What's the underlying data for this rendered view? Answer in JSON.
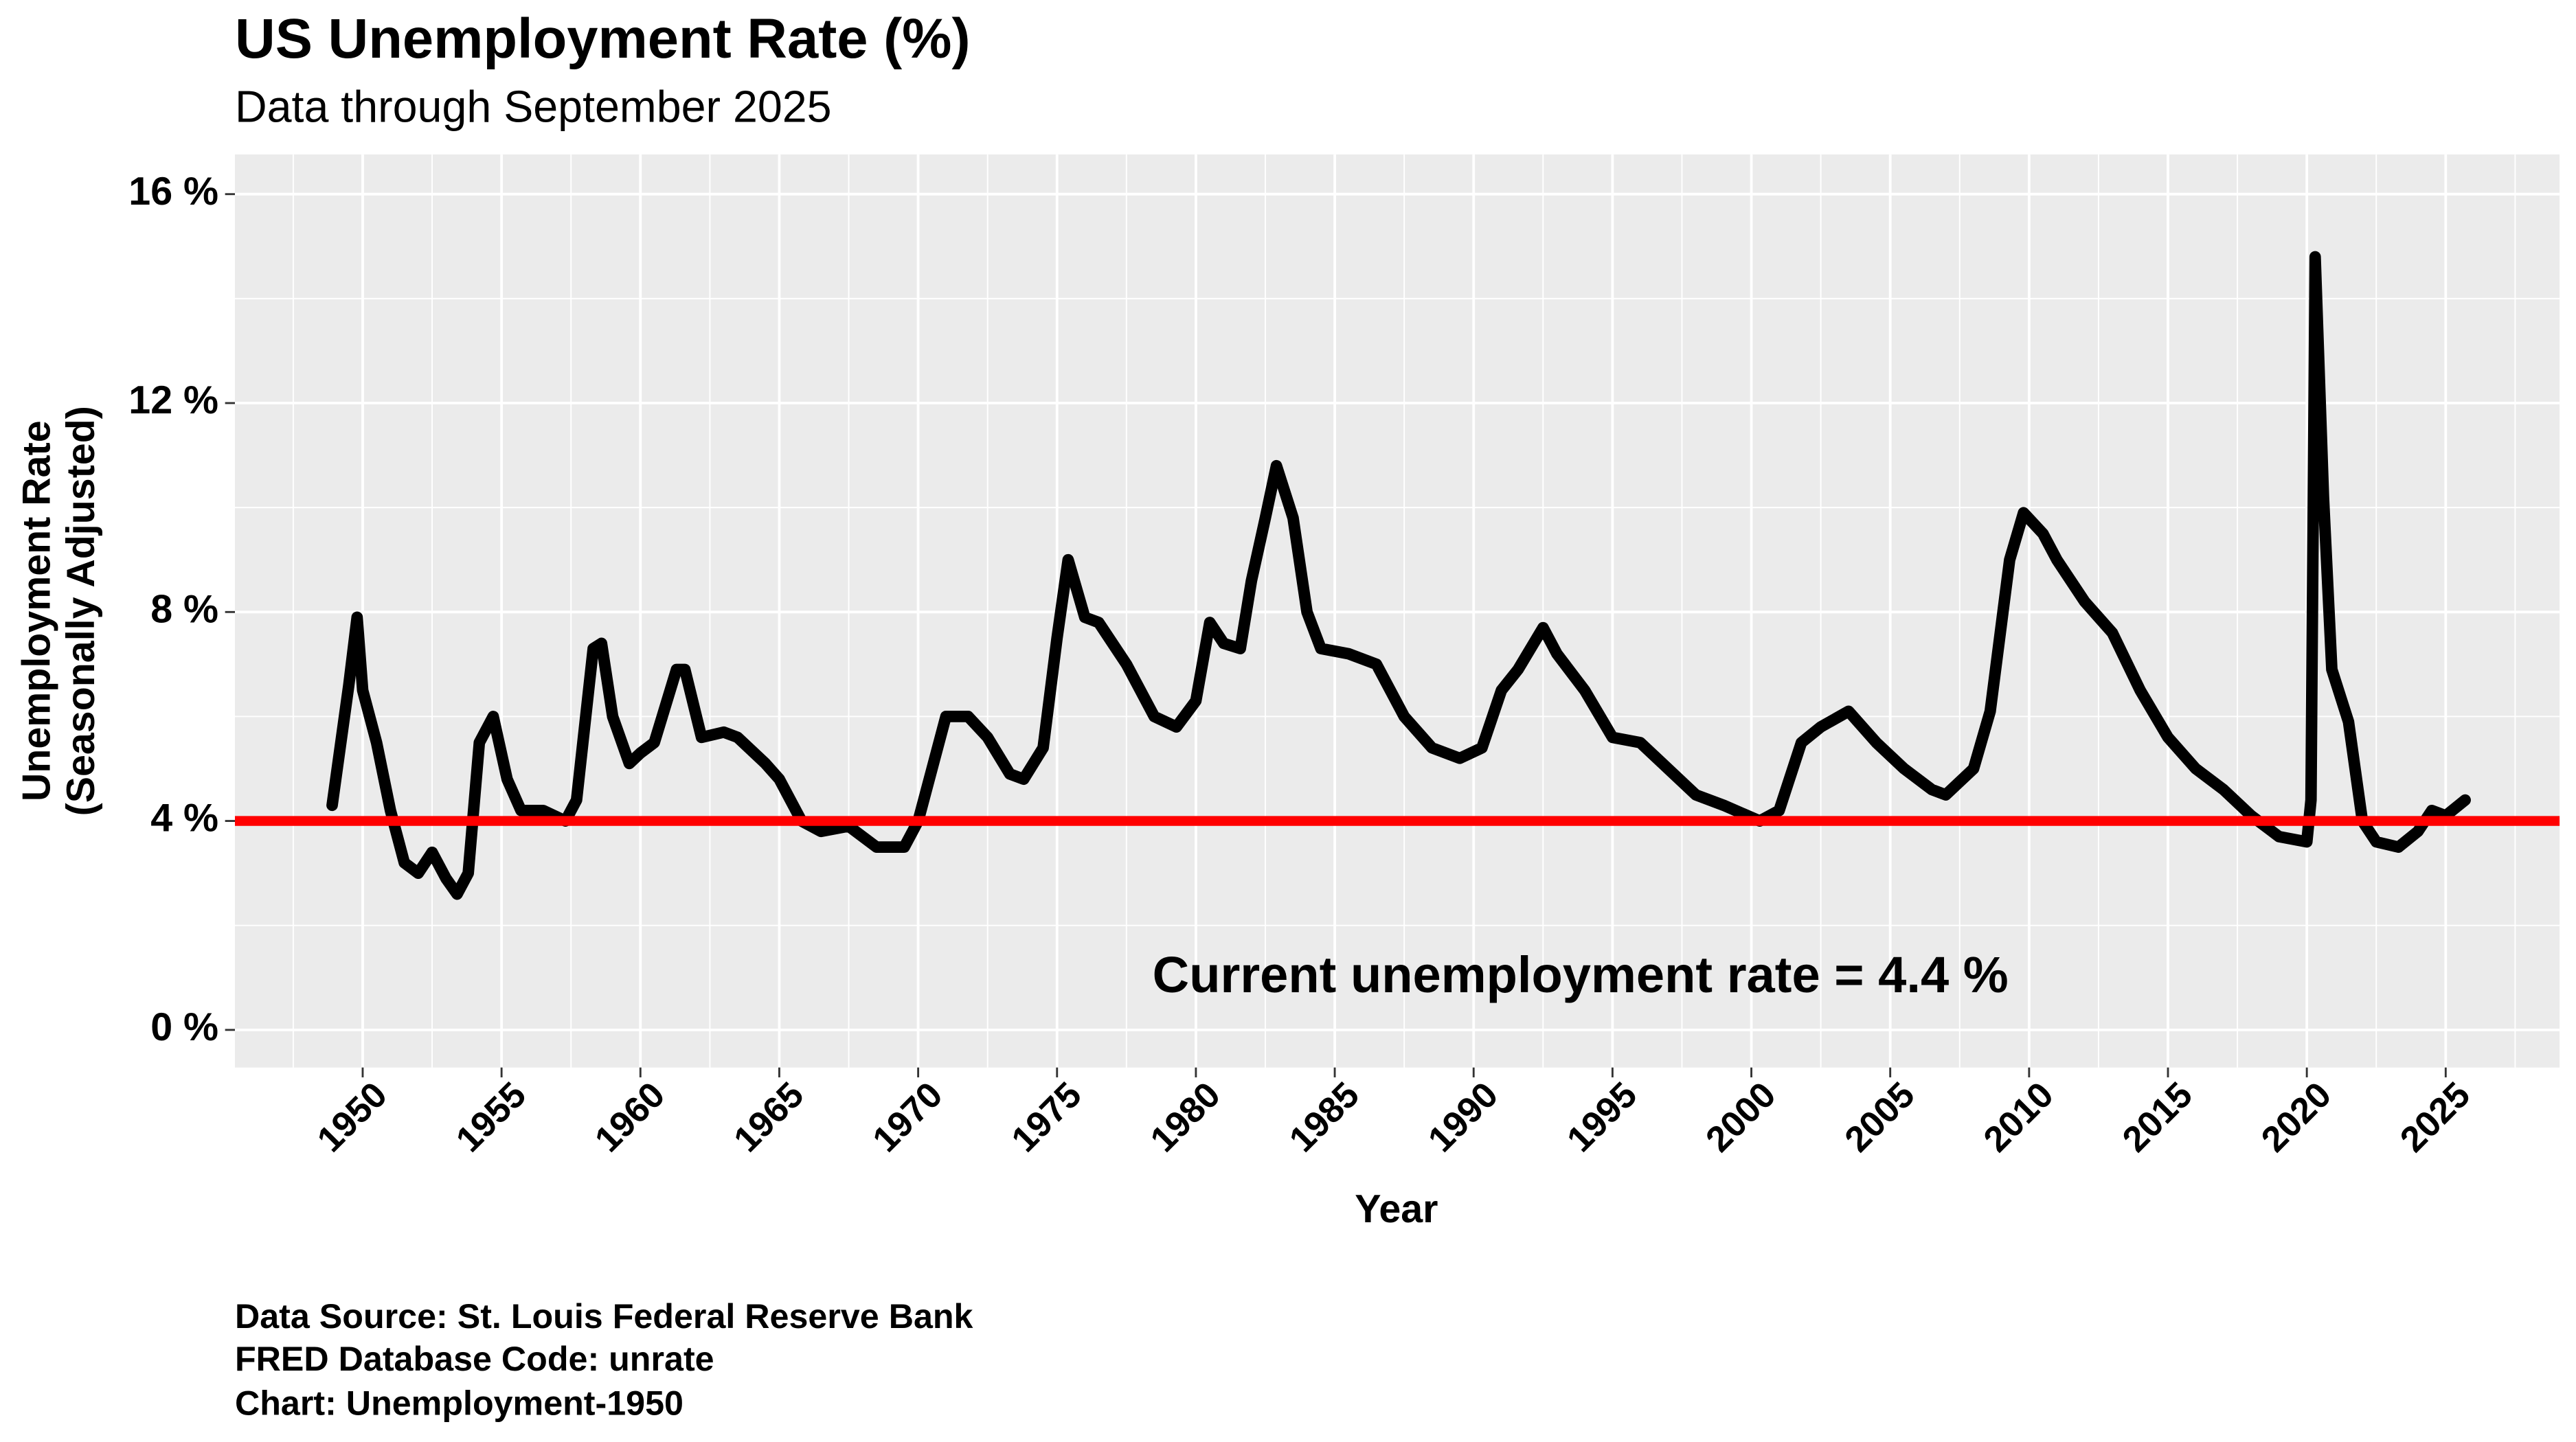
{
  "chart_data": {
    "type": "line",
    "title": "US Unemployment Rate (%)",
    "subtitle": "Data through September 2025",
    "x_label": "Year",
    "y_label": [
      "Unemployment Rate",
      "(Seasonally Adjusted)"
    ],
    "annotation": "Current unemployment rate = 4.4 %",
    "footer": [
      "Data Source: St. Louis Federal Reserve Bank",
      "FRED Database Code: unrate",
      "Chart:  Unemployment-1950"
    ],
    "xlim": [
      1945.4,
      2029.1
    ],
    "ylim": [
      -0.72,
      16.76
    ],
    "xticks": [
      1950,
      1955,
      1960,
      1965,
      1970,
      1975,
      1980,
      1985,
      1990,
      1995,
      2000,
      2005,
      2010,
      2015,
      2020,
      2025
    ],
    "yticks": [
      {
        "value": 0,
        "label": "0 %"
      },
      {
        "value": 4,
        "label": "4 %"
      },
      {
        "value": 8,
        "label": "8 %"
      },
      {
        "value": 12,
        "label": "12 %"
      },
      {
        "value": 16,
        "label": "16 %"
      }
    ],
    "grid": true,
    "reference_line": {
      "value": 4,
      "color": "#ff0000"
    },
    "series": [
      {
        "color": "#000000",
        "x": [
          1948.9,
          1949.5,
          1949.8,
          1950.0,
          1950.5,
          1951.0,
          1951.5,
          1952.0,
          1952.5,
          1953.0,
          1953.4,
          1953.8,
          1954.2,
          1954.7,
          1955.2,
          1955.7,
          1956.5,
          1957.3,
          1957.7,
          1958.3,
          1958.6,
          1959.0,
          1959.6,
          1960.0,
          1960.5,
          1961.3,
          1961.6,
          1962.2,
          1963.0,
          1963.5,
          1964.5,
          1965.0,
          1965.8,
          1966.5,
          1967.5,
          1968.5,
          1969.5,
          1970.0,
          1970.5,
          1971.0,
          1971.8,
          1972.5,
          1973.3,
          1973.8,
          1974.5,
          1975.0,
          1975.4,
          1976.0,
          1976.5,
          1977.5,
          1978.5,
          1979.3,
          1980.0,
          1980.5,
          1981.0,
          1981.6,
          1982.0,
          1982.5,
          1982.9,
          1983.5,
          1984.0,
          1984.5,
          1985.5,
          1986.5,
          1987.5,
          1988.5,
          1989.5,
          1990.3,
          1991.0,
          1991.6,
          1992.5,
          1993.0,
          1994.0,
          1995.0,
          1996.0,
          1997.0,
          1998.0,
          1999.0,
          2000.3,
          2001.0,
          2001.8,
          2002.5,
          2003.5,
          2004.5,
          2005.5,
          2006.5,
          2007.0,
          2008.0,
          2008.6,
          2009.3,
          2009.8,
          2010.5,
          2011.0,
          2012.0,
          2013.0,
          2014.0,
          2015.0,
          2016.0,
          2017.0,
          2018.0,
          2019.0,
          2020.0,
          2020.15,
          2020.3,
          2020.6,
          2020.9,
          2021.5,
          2022.0,
          2022.5,
          2023.3,
          2024.0,
          2024.5,
          2025.0,
          2025.7
        ],
        "values": [
          4.3,
          6.6,
          7.9,
          6.5,
          5.5,
          4.2,
          3.2,
          3.0,
          3.4,
          2.9,
          2.6,
          3.0,
          5.5,
          6.0,
          4.8,
          4.2,
          4.2,
          4.0,
          4.4,
          7.3,
          7.4,
          6.0,
          5.1,
          5.3,
          5.5,
          6.9,
          6.9,
          5.6,
          5.7,
          5.6,
          5.1,
          4.8,
          4.0,
          3.8,
          3.9,
          3.5,
          3.5,
          4.0,
          5.0,
          6.0,
          6.0,
          5.6,
          4.9,
          4.8,
          5.4,
          7.5,
          9.0,
          7.9,
          7.8,
          7.0,
          6.0,
          5.8,
          6.3,
          7.8,
          7.4,
          7.3,
          8.6,
          9.8,
          10.8,
          9.8,
          8.0,
          7.3,
          7.2,
          7.0,
          6.0,
          5.4,
          5.2,
          5.4,
          6.5,
          6.9,
          7.7,
          7.2,
          6.5,
          5.6,
          5.5,
          5.0,
          4.5,
          4.3,
          4.0,
          4.2,
          5.5,
          5.8,
          6.1,
          5.5,
          5.0,
          4.6,
          4.5,
          5.0,
          6.1,
          9.0,
          9.9,
          9.5,
          9.0,
          8.2,
          7.6,
          6.5,
          5.6,
          5.0,
          4.6,
          4.1,
          3.7,
          3.6,
          4.4,
          14.8,
          10.2,
          6.9,
          5.9,
          4.0,
          3.6,
          3.5,
          3.8,
          4.2,
          4.1,
          4.4
        ]
      }
    ]
  }
}
